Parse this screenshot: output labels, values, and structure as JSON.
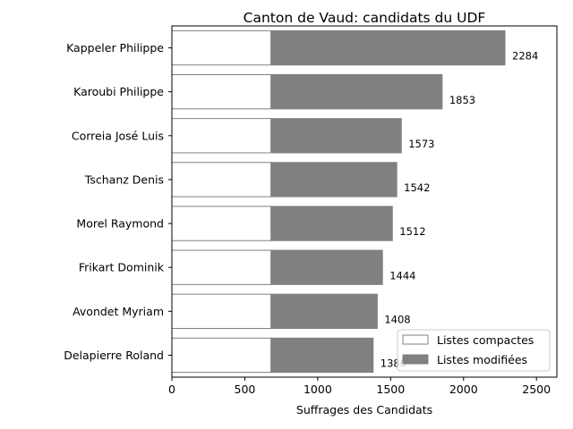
{
  "chart_data": {
    "type": "bar",
    "orientation": "horizontal",
    "stacked": true,
    "title": "Canton de Vaud: candidats du UDF",
    "xlabel": "Suffrages des Candidats",
    "ylabel": "",
    "xlim": [
      0,
      2640
    ],
    "xticks": [
      0,
      500,
      1000,
      1500,
      2000,
      2500
    ],
    "categories": [
      "Kappeler Philippe",
      "Karoubi Philippe",
      "Correia José Luis",
      "Tschanz Denis",
      "Morel Raymond",
      "Frikart Dominik",
      "Avondet Myriam",
      "Delapierre Roland"
    ],
    "series": [
      {
        "name": "Listes compactes",
        "color": "#ffffff",
        "edgecolor": "#808080",
        "values": [
          680,
          680,
          680,
          680,
          680,
          680,
          680,
          680
        ]
      },
      {
        "name": "Listes modifiées",
        "color": "#808080",
        "edgecolor": "#808080",
        "values": [
          1604,
          1173,
          893,
          862,
          832,
          764,
          728,
          700
        ]
      }
    ],
    "totals": [
      2284,
      1853,
      1573,
      1542,
      1512,
      1444,
      1408,
      1380
    ],
    "legend_position": "bottom-right",
    "grid": false
  }
}
